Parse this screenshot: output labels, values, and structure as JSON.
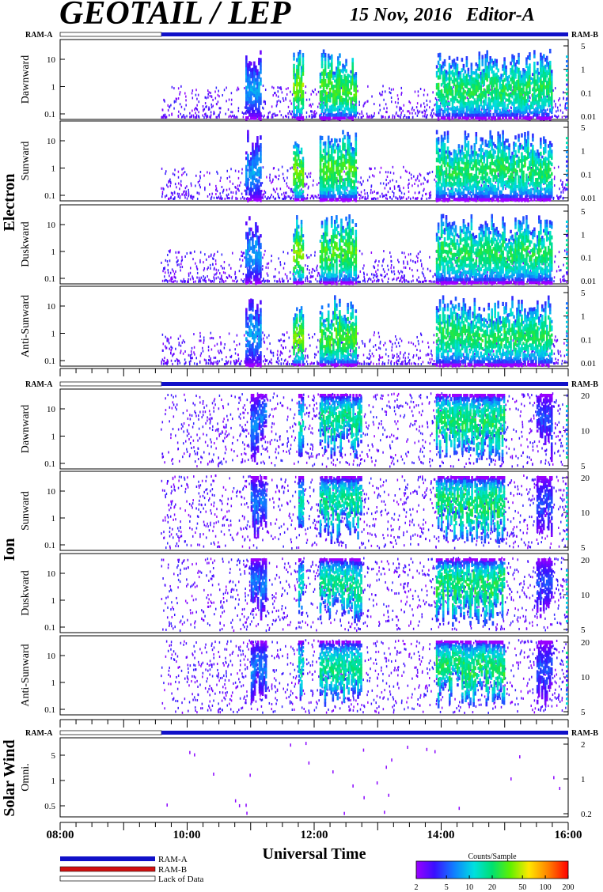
{
  "header": {
    "title": "GEOTAIL / LEP",
    "date_editor": "15 Nov, 2016   Editor-A"
  },
  "ram_bar": {
    "left_label": "RAM-A",
    "right_label": "RAM-B",
    "colors": {
      "ram_a": "#1010c8",
      "ram_b": "#d01010",
      "no_data": "#ffffff"
    },
    "segments": [
      {
        "from": "08:00",
        "to": "09:35",
        "state": "Lack of Data"
      },
      {
        "from": "09:35",
        "to": "16:00",
        "state": "RAM-A"
      }
    ]
  },
  "sections": [
    {
      "name": "Electron",
      "panels": [
        {
          "label": "Dawnward",
          "left_ticks": [
            "10",
            "1",
            "0.1"
          ],
          "right_ticks": [
            "5",
            "1",
            "0.1",
            "0.01"
          ]
        },
        {
          "label": "Sunward",
          "left_ticks": [
            "10",
            "1",
            "0.1"
          ],
          "right_ticks": [
            "5",
            "1",
            "0.1",
            "0.01"
          ]
        },
        {
          "label": "Duskward",
          "left_ticks": [
            "10",
            "1",
            "0.1"
          ],
          "right_ticks": [
            "5",
            "1",
            "0.1",
            "0.01"
          ]
        },
        {
          "label": "Anti-Sunward",
          "left_ticks": [
            "10",
            "1",
            "0.1"
          ],
          "right_ticks": [
            "5",
            "1",
            "0.1",
            "0.01"
          ]
        }
      ]
    },
    {
      "name": "Ion",
      "panels": [
        {
          "label": "Dawnward",
          "left_ticks": [
            "10",
            "1",
            "0.1"
          ],
          "right_ticks": [
            "20",
            "10",
            "5"
          ]
        },
        {
          "label": "Sunward",
          "left_ticks": [
            "10",
            "1",
            "0.1"
          ],
          "right_ticks": [
            "20",
            "10",
            "5"
          ]
        },
        {
          "label": "Duskward",
          "left_ticks": [
            "10",
            "1",
            "0.1"
          ],
          "right_ticks": [
            "20",
            "10",
            "5"
          ]
        },
        {
          "label": "Anti-Sunward",
          "left_ticks": [
            "10",
            "1",
            "0.1"
          ],
          "right_ticks": [
            "20",
            "10",
            "5"
          ]
        }
      ]
    },
    {
      "name": "Solar Wind",
      "panels": [
        {
          "label": "Omni.",
          "left_ticks": [
            "5",
            "1",
            "0.5"
          ],
          "right_ticks": [
            "2",
            "1",
            "0.2"
          ]
        }
      ]
    }
  ],
  "x_axis": {
    "title": "Universal Time",
    "ticks": [
      "08:00",
      "10:00",
      "12:00",
      "14:00",
      "16:00"
    ]
  },
  "legend": {
    "items": [
      {
        "label": "RAM-A",
        "color": "#1010c8"
      },
      {
        "label": "RAM-B",
        "color": "#d01010"
      },
      {
        "label": "Lack of Data",
        "color": "#ffffff"
      }
    ]
  },
  "colorbar": {
    "title": "Counts/Sample",
    "ticks": [
      "2",
      "5",
      "10",
      "20",
      "50",
      "100",
      "200"
    ],
    "scale": "log",
    "range": [
      2,
      200
    ]
  },
  "chart_data": {
    "type": "heatmap",
    "title": "GEOTAIL / LEP",
    "xlabel": "Universal Time",
    "x_range": [
      "08:00",
      "16:00"
    ],
    "y_scale": "log",
    "data_start": "09:35",
    "electron_activity": [
      {
        "from": "10:55",
        "to": "11:10",
        "peak_counts": 10
      },
      {
        "from": "11:40",
        "to": "11:50",
        "peak_counts": 50
      },
      {
        "from": "12:05",
        "to": "12:40",
        "peak_counts": 40
      },
      {
        "from": "13:55",
        "to": "15:45",
        "peak_counts": 30
      }
    ],
    "ion_activity": [
      {
        "from": "11:00",
        "to": "11:15",
        "peak_counts": 8
      },
      {
        "from": "11:45",
        "to": "11:50",
        "peak_counts": 20
      },
      {
        "from": "12:05",
        "to": "12:45",
        "peak_counts": 25
      },
      {
        "from": "13:55",
        "to": "15:00",
        "peak_counts": 30
      },
      {
        "from": "15:30",
        "to": "15:45",
        "peak_counts": 6
      }
    ]
  }
}
